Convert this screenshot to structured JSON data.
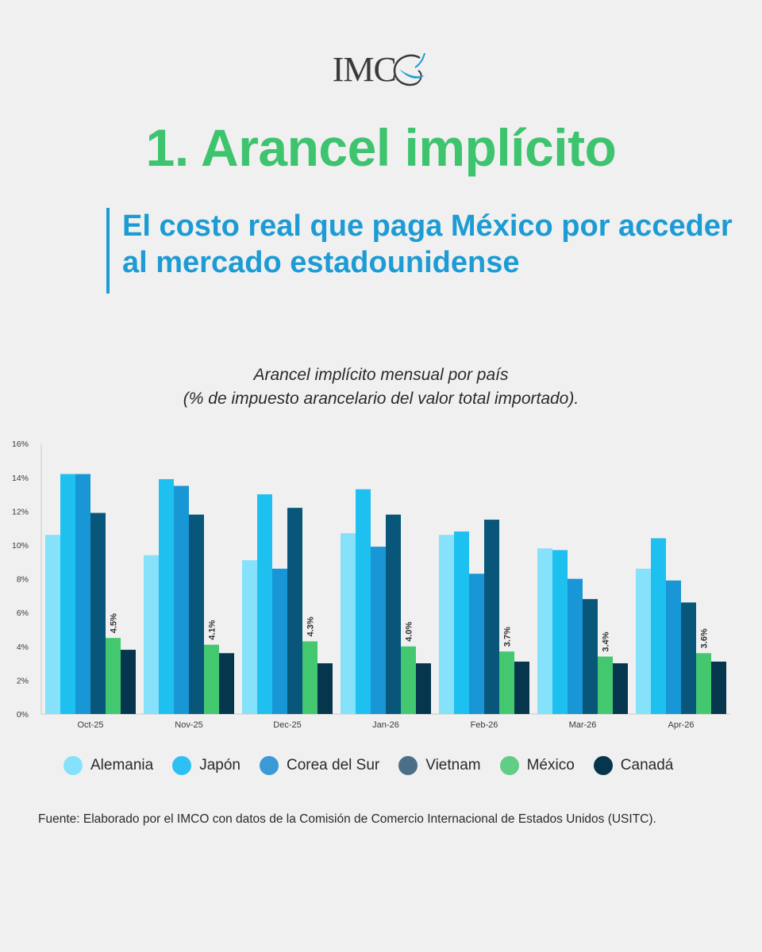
{
  "header": {
    "logo_text": "IMC",
    "title": "1. Arancel implícito",
    "subtitle": "El costo real que paga México por acceder al mercado estadounidense"
  },
  "chart_data": {
    "type": "bar",
    "title_line1": "Arancel implícito mensual por país",
    "title_line2": "(% de impuesto arancelario del valor total importado).",
    "categories": [
      "Oct-25",
      "Nov-25",
      "Dec-25",
      "Jan-26",
      "Feb-26",
      "Mar-26",
      "Apr-26"
    ],
    "series": [
      {
        "name": "Alemania",
        "color": "#86e1fb",
        "values": [
          10.6,
          9.4,
          9.1,
          10.7,
          10.6,
          9.8,
          8.6
        ]
      },
      {
        "name": "Japón",
        "color": "#1ec0f0",
        "values": [
          14.2,
          13.9,
          13.0,
          13.3,
          10.8,
          9.7,
          10.4
        ]
      },
      {
        "name": "Corea del Sur",
        "color": "#1896d6",
        "values": [
          14.2,
          13.5,
          8.6,
          9.9,
          8.3,
          8.0,
          7.9
        ]
      },
      {
        "name": "Vietnam",
        "color": "#08577a",
        "values": [
          11.9,
          11.8,
          12.2,
          11.8,
          11.5,
          6.8,
          6.6
        ]
      },
      {
        "name": "México",
        "color": "#43c870",
        "values": [
          4.5,
          4.1,
          4.3,
          4.0,
          3.7,
          3.4,
          3.6
        ],
        "labels": [
          "4.5%",
          "4.1%",
          "4.3%",
          "4.0%",
          "3.7%",
          "3.4%",
          "3.6%"
        ]
      },
      {
        "name": "Canadá",
        "color": "#06364d",
        "values": [
          3.8,
          3.6,
          3.0,
          3.0,
          3.1,
          3.0,
          3.1
        ]
      }
    ],
    "y_ticks": [
      "0%",
      "2%",
      "4%",
      "6%",
      "8%",
      "10%",
      "12%",
      "14%",
      "16%"
    ],
    "ylim": [
      0,
      16
    ],
    "grid": false,
    "legend_placement": "bottom"
  },
  "source": "Fuente: Elaborado por el IMCO con datos de la Comisión de Comercio Internacional de Estados Unidos (USITC)."
}
